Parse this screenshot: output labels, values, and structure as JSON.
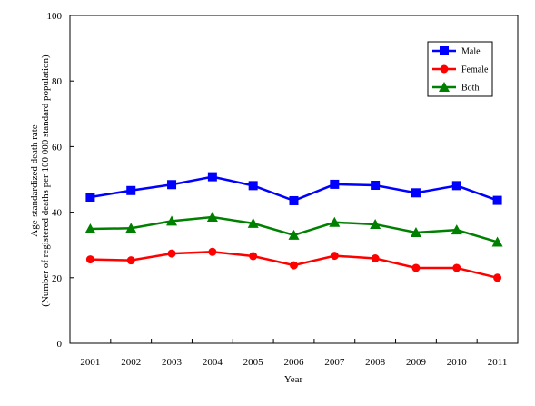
{
  "chart_data": {
    "type": "line",
    "xlabel": "Year",
    "ylabel_line1": "Age-standardized death rate",
    "ylabel_line2": "(Number of registered deaths per 100 000 standard population)",
    "categories": [
      "2001",
      "2002",
      "2003",
      "2004",
      "2005",
      "2006",
      "2007",
      "2008",
      "2009",
      "2010",
      "2011"
    ],
    "ylim": [
      0,
      100
    ],
    "yticks": [
      0,
      20,
      40,
      60,
      80,
      100
    ],
    "grid": false,
    "legend_position": "top-right",
    "series": [
      {
        "name": "Male",
        "color": "#0000ff",
        "marker": "square",
        "values": [
          44.6,
          46.6,
          48.4,
          50.8,
          48.1,
          43.5,
          48.5,
          48.2,
          45.9,
          48.1,
          43.6
        ]
      },
      {
        "name": "Female",
        "color": "#ff0000",
        "marker": "circle",
        "values": [
          25.6,
          25.3,
          27.4,
          27.9,
          26.6,
          23.8,
          26.7,
          25.9,
          23.0,
          23.0,
          20.0
        ]
      },
      {
        "name": "Both",
        "color": "#008000",
        "marker": "triangle",
        "values": [
          34.9,
          35.1,
          37.3,
          38.5,
          36.6,
          33.0,
          36.9,
          36.3,
          33.8,
          34.6,
          30.9
        ]
      }
    ]
  }
}
